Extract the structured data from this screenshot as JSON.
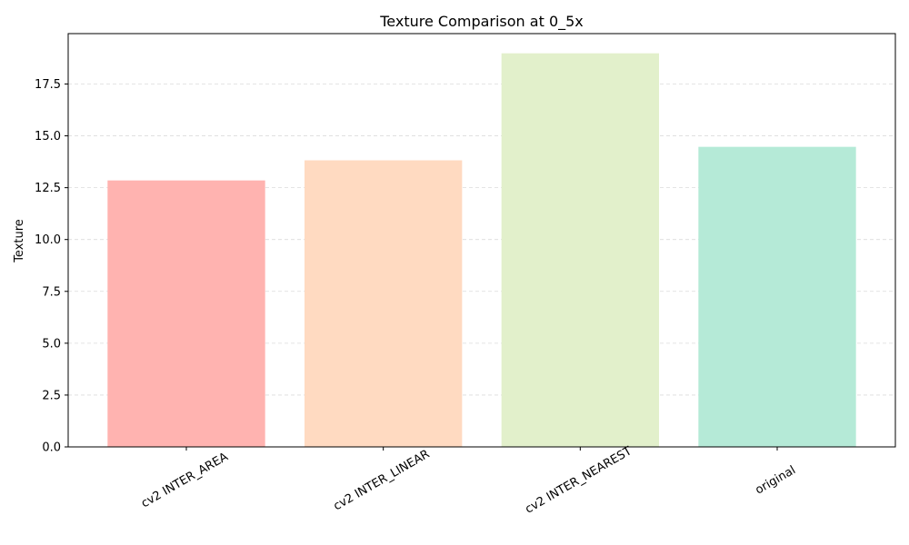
{
  "chart_data": {
    "type": "bar",
    "title": "Texture Comparison at 0_5x",
    "xlabel": "",
    "ylabel": "Texture",
    "categories": [
      "cv2 INTER_AREA",
      "cv2 INTER_LINEAR",
      "cv2 INTER_NEAREST",
      "original"
    ],
    "values": [
      12.85,
      13.82,
      18.98,
      14.47
    ],
    "colors": [
      "#ffb3b0",
      "#ffdac1",
      "#e2f0cb",
      "#b5ead7"
    ],
    "ylim": [
      0,
      19.93
    ],
    "yticks": [
      "0.0",
      "2.5",
      "5.0",
      "7.5",
      "10.0",
      "12.5",
      "15.0",
      "17.5"
    ],
    "grid": "y-dashed"
  }
}
